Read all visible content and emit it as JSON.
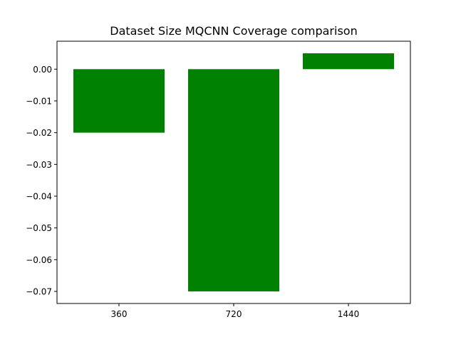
{
  "chart_data": {
    "type": "bar",
    "title": "Dataset Size MQCNN Coverage comparison",
    "xlabel": "",
    "ylabel": "",
    "categories": [
      "360",
      "720",
      "1440"
    ],
    "values": [
      -0.02,
      -0.07,
      0.005
    ],
    "ylim": [
      -0.0738,
      0.0088
    ],
    "yticks": [
      0.0,
      -0.01,
      -0.02,
      -0.03,
      -0.04,
      -0.05,
      -0.06,
      -0.07
    ],
    "ytick_labels": [
      "0.00",
      "−0.01",
      "−0.02",
      "−0.03",
      "−0.04",
      "−0.05",
      "−0.06",
      "−0.07"
    ],
    "bar_color": "#008000",
    "grid": false,
    "legend": false
  }
}
